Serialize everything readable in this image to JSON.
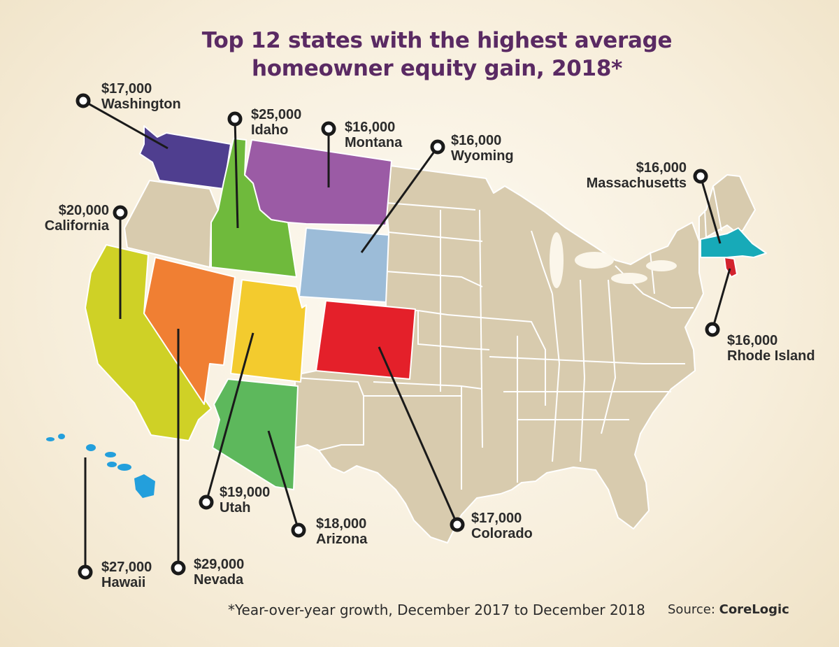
{
  "title": {
    "line1": "Top 12 states with the highest average",
    "line2": "homeowner equity gain, 2018*"
  },
  "colors": {
    "base_state": "#d8cbae",
    "state_border": "#ffffff",
    "leader_line": "#1a1a1a",
    "Washington": "#4f3e8f",
    "Idaho": "#6fba3c",
    "Montana": "#9b5ba5",
    "Wyoming": "#9cbcd8",
    "Massachusetts": "#17aab8",
    "Rhode Island": "#d3232e",
    "California": "#cfd126",
    "Nevada": "#f07f33",
    "Utah": "#f3cb2e",
    "Colorado": "#e4202a",
    "Arizona": "#5db85c",
    "Hawaii": "#239fdc"
  },
  "states": [
    {
      "name": "Washington",
      "value": "$17,000"
    },
    {
      "name": "Idaho",
      "value": "$25,000"
    },
    {
      "name": "Montana",
      "value": "$16,000"
    },
    {
      "name": "Wyoming",
      "value": "$16,000"
    },
    {
      "name": "Massachusetts",
      "value": "$16,000"
    },
    {
      "name": "California",
      "value": "$20,000"
    },
    {
      "name": "Rhode Island",
      "value": "$16,000"
    },
    {
      "name": "Utah",
      "value": "$19,000"
    },
    {
      "name": "Arizona",
      "value": "$18,000"
    },
    {
      "name": "Colorado",
      "value": "$17,000"
    },
    {
      "name": "Hawaii",
      "value": "$27,000"
    },
    {
      "name": "Nevada",
      "value": "$29,000"
    }
  ],
  "footnote": "*Year-over-year growth, December 2017 to December 2018",
  "source": {
    "prefix": "Source: ",
    "name": "CoreLogic"
  }
}
